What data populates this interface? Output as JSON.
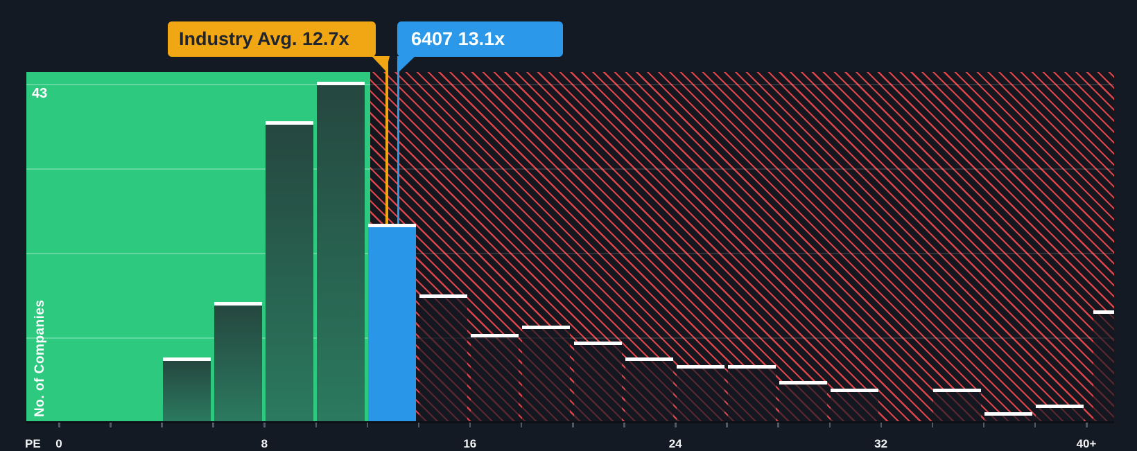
{
  "colors": {
    "page_bg": "#141A23",
    "green_zone": "#2DC97E",
    "teal_bar_top": "#25473F",
    "teal_bar_bottom": "#2B7A5F",
    "company_blue": "#2996E8",
    "hatch_bg": "#16161F",
    "hatch_line": "#EF4A4F",
    "marker_yellow": "#F0A713",
    "marker_blue": "#2B98EA",
    "callout_dark_text": "#1F242E",
    "bar_top_line": "#FFFFFF"
  },
  "callouts": {
    "industry": {
      "text": "Industry Avg. 12.7x",
      "pe": 12.7
    },
    "company": {
      "text": "6407 13.1x",
      "pe": 13.1
    }
  },
  "axis": {
    "x_title": "PE",
    "y_title": "No. of Companies",
    "y_max_label": "43",
    "tick_step": 2,
    "x_tick_labels": [
      {
        "label": "0",
        "pe": 0
      },
      {
        "label": "8",
        "pe": 8
      },
      {
        "label": "16",
        "pe": 16
      },
      {
        "label": "24",
        "pe": 24
      },
      {
        "label": "32",
        "pe": 32
      },
      {
        "label": "40+",
        "pe": 40
      }
    ]
  },
  "chart_data": {
    "type": "bar",
    "title": "PE ratio distribution vs industry",
    "xlabel": "PE",
    "ylabel": "No. of Companies",
    "ylim": [
      0,
      43
    ],
    "xlim": [
      0,
      41
    ],
    "grid": true,
    "gridline_values": [
      43,
      32.25,
      21.5,
      10.75
    ],
    "industry_avg_pe": 12.7,
    "company": {
      "ticker": "6407",
      "pe": 13.1
    },
    "bins": [
      {
        "from": 0,
        "to": 2,
        "count": 0,
        "zone": "below-avg"
      },
      {
        "from": 2,
        "to": 4,
        "count": 0,
        "zone": "below-avg"
      },
      {
        "from": 4,
        "to": 6,
        "count": 8,
        "zone": "below-avg"
      },
      {
        "from": 6,
        "to": 8,
        "count": 15,
        "zone": "below-avg"
      },
      {
        "from": 8,
        "to": 10,
        "count": 38,
        "zone": "below-avg"
      },
      {
        "from": 10,
        "to": 12,
        "count": 43,
        "zone": "below-avg"
      },
      {
        "from": 12,
        "to": 14,
        "count": 25,
        "zone": "company"
      },
      {
        "from": 14,
        "to": 16,
        "count": 16,
        "zone": "above-avg"
      },
      {
        "from": 16,
        "to": 18,
        "count": 11,
        "zone": "above-avg"
      },
      {
        "from": 18,
        "to": 20,
        "count": 12,
        "zone": "above-avg"
      },
      {
        "from": 20,
        "to": 22,
        "count": 10,
        "zone": "above-avg"
      },
      {
        "from": 22,
        "to": 24,
        "count": 8,
        "zone": "above-avg"
      },
      {
        "from": 24,
        "to": 26,
        "count": 7,
        "zone": "above-avg"
      },
      {
        "from": 26,
        "to": 28,
        "count": 7,
        "zone": "above-avg"
      },
      {
        "from": 28,
        "to": 30,
        "count": 5,
        "zone": "above-avg"
      },
      {
        "from": 30,
        "to": 32,
        "count": 4,
        "zone": "above-avg"
      },
      {
        "from": 32,
        "to": 34,
        "count": 0,
        "zone": "above-avg"
      },
      {
        "from": 34,
        "to": 36,
        "count": 4,
        "zone": "above-avg"
      },
      {
        "from": 36,
        "to": 38,
        "count": 1,
        "zone": "above-avg"
      },
      {
        "from": 38,
        "to": 40,
        "count": 2,
        "zone": "above-avg"
      },
      {
        "from": 40,
        "to": 41,
        "count": 14,
        "zone": "above-avg-overflow",
        "label": "40+"
      }
    ]
  }
}
